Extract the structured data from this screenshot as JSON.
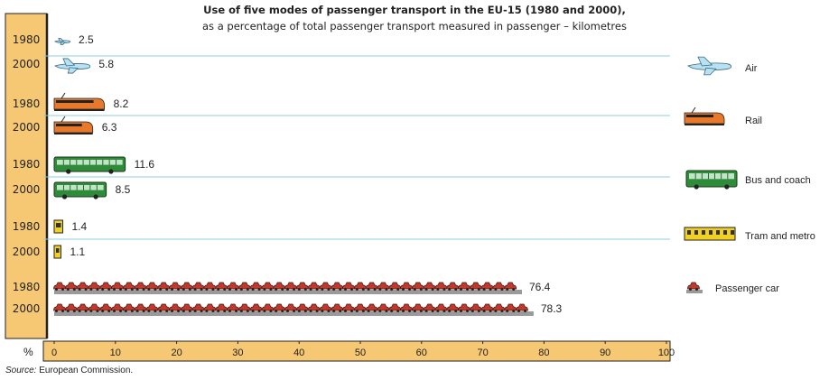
{
  "title": "Use of five modes of passenger transport in the EU-15 (1980 and 2000),",
  "subtitle": "as a percentage of total passenger transport measured in passenger – kilometres",
  "source_label": "Source:",
  "source_text": " European Commission.",
  "chart_data": {
    "type": "bar",
    "orientation": "horizontal",
    "xlabel": "%",
    "xlim": [
      0,
      100
    ],
    "x_ticks": [
      0,
      10,
      20,
      30,
      40,
      50,
      60,
      70,
      80,
      90,
      100
    ],
    "categories": [
      "Air",
      "Rail",
      "Bus and coach",
      "Tram and metro",
      "Passenger car"
    ],
    "series": [
      {
        "name": "1980",
        "values": [
          2.5,
          8.2,
          11.6,
          1.4,
          76.4
        ],
        "labels": [
          "2.5",
          "8.2",
          "11.6",
          "1.4",
          "76.4"
        ]
      },
      {
        "name": "2000",
        "values": [
          5.8,
          6.3,
          8.5,
          1.1,
          78.3
        ],
        "labels": [
          "5.8",
          "6.3",
          "8.5",
          "1.1",
          "78.3"
        ]
      }
    ],
    "legend_placement": "right",
    "colors": {
      "air": "#b8e2f4",
      "rail": "#e8782a",
      "bus": "#2e8b3a",
      "tram": "#f2d020",
      "car": "#c0392b",
      "year_band": "#f7c873",
      "gridline": "#8ccde0"
    }
  }
}
